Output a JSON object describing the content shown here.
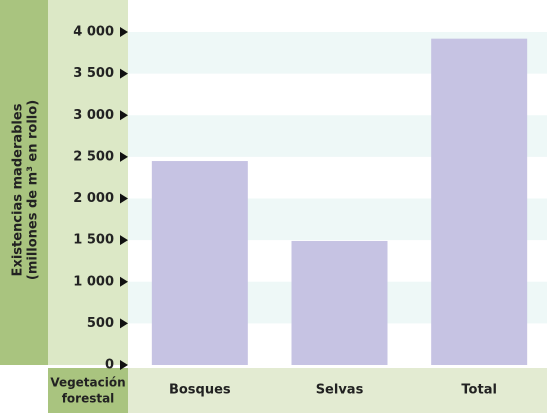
{
  "chart_data": {
    "type": "bar",
    "ylabel": [
      "Existencias maderables",
      "(millones de m³ en rollo)"
    ],
    "xlabel": [
      "Vegetación",
      "forestal"
    ],
    "categories": [
      "Bosques",
      "Selvas",
      "Total"
    ],
    "values": [
      2450,
      1490,
      3920
    ],
    "color": "#c6c3e3",
    "ylim": [
      0,
      4000
    ],
    "yticks": [
      0,
      500,
      {
        "value": 1000,
        "label": "1 000"
      },
      {
        "value": 1500,
        "label": "1 500"
      },
      {
        "value": 2000,
        "label": "2 000"
      },
      {
        "value": 2500,
        "label": "2 500"
      },
      {
        "value": 3000,
        "label": "3 000"
      },
      {
        "value": 3500,
        "label": "3 500"
      },
      {
        "value": 4000,
        "label": "4 000"
      }
    ],
    "grid": true
  }
}
